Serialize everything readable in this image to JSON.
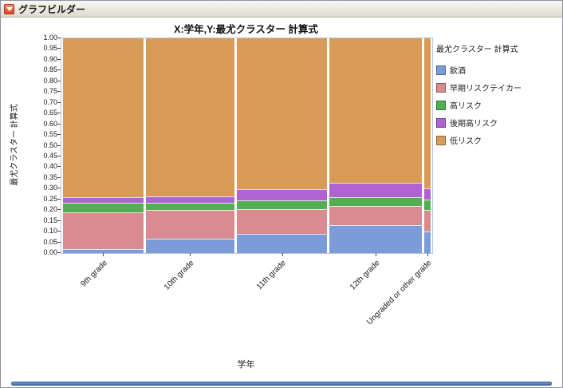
{
  "window": {
    "title": "グラフビルダー"
  },
  "chart": {
    "title": "X:学年,Y:最尤クラスター 計算式",
    "x_axis_label": "学年",
    "y_axis_label": "最尤クラスター 計算式"
  },
  "legend": {
    "title": "最尤クラスター 計算式"
  },
  "chart_data": {
    "type": "mosaic",
    "title": "X:学年,Y:最尤クラスター 計算式",
    "xlabel": "学年",
    "ylabel": "最尤クラスター 計算式",
    "ylim": [
      0,
      1
    ],
    "y_ticks": [
      "0.00",
      "0.05",
      "0.10",
      "0.15",
      "0.20",
      "0.25",
      "0.30",
      "0.35",
      "0.40",
      "0.45",
      "0.50",
      "0.55",
      "0.60",
      "0.65",
      "0.70",
      "0.75",
      "0.80",
      "0.85",
      "0.90",
      "0.95",
      "1.00"
    ],
    "grid": false,
    "legend_title": "最尤クラスター 計算式",
    "legend_position": "right",
    "categories": [
      "9th grade",
      "10th grade",
      "11th grade",
      "12th grade",
      "Ungraded or other grade"
    ],
    "category_widths": [
      0.224,
      0.248,
      0.252,
      0.258,
      0.018
    ],
    "series": [
      {
        "name": "飲酒",
        "color": "#7C9CD9",
        "values": [
          0.02,
          0.065,
          0.09,
          0.13,
          0.1
        ]
      },
      {
        "name": "早期リスクテイカー",
        "color": "#D88B90",
        "values": [
          0.17,
          0.135,
          0.115,
          0.09,
          0.1
        ]
      },
      {
        "name": "高リスク",
        "color": "#54AE54",
        "values": [
          0.045,
          0.035,
          0.04,
          0.04,
          0.05
        ]
      },
      {
        "name": "後期高リスク",
        "color": "#AF62D4",
        "values": [
          0.025,
          0.03,
          0.052,
          0.067,
          0.05
        ]
      },
      {
        "name": "低リスク",
        "color": "#D89B57",
        "values": [
          0.74,
          0.735,
          0.703,
          0.673,
          0.7
        ]
      }
    ]
  }
}
